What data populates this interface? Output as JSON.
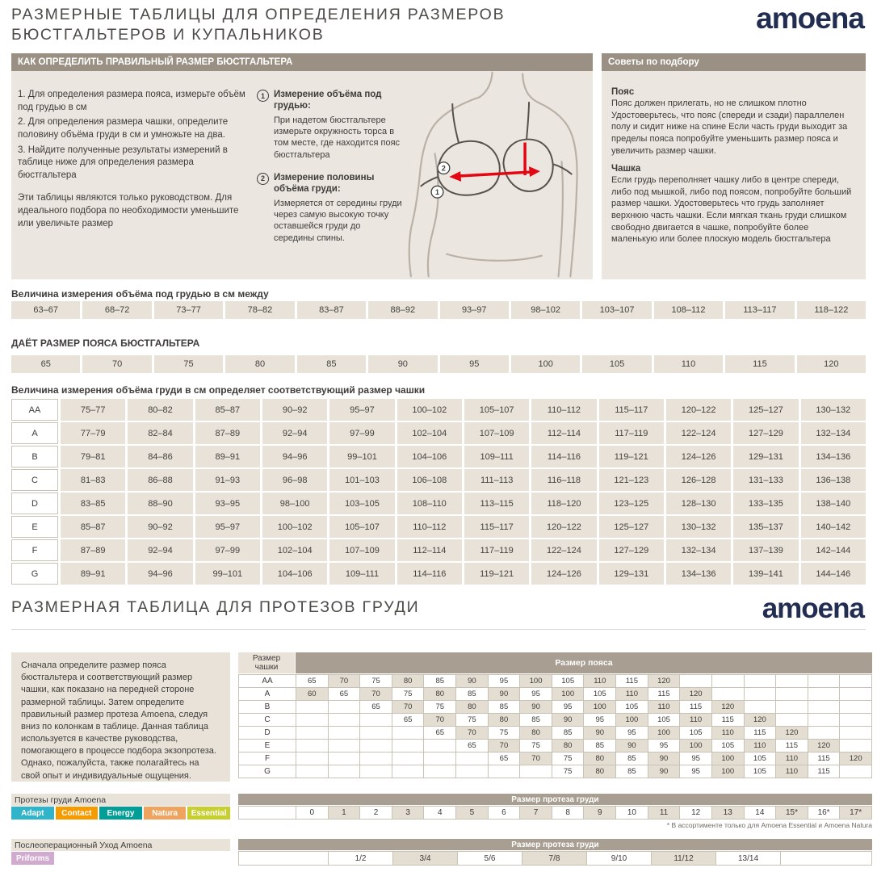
{
  "brand": {
    "logo": "amoena"
  },
  "colors": {
    "logo_navy": "#222d52",
    "section_bar": "#9a9184",
    "panel_beige": "#ebe6df",
    "cell_beige": "#e8e2d9",
    "cell_shaded": "#e4ddd2",
    "accent_red": "#e30613"
  },
  "header": {
    "title_line1": "РАЗМЕРНЫЕ ТАБЛИЦЫ ДЛЯ ОПРЕДЕЛЕНИЯ РАЗМЕРОВ",
    "title_line2": "БЮСТГАЛЬТЕРОВ И КУПАЛЬНИКОВ"
  },
  "how_to": {
    "bar_title": "КАК ОПРЕДЕЛИТЬ ПРАВИЛЬНЫЙ РАЗМЕР БЮСТГАЛЬТЕРА",
    "steps": [
      "1. Для определения размера пояса, измерьте объём под грудью в см",
      "2.  Для определения размера чашки, определите половину объёма груди в см и умножьте на два.",
      "3.  Найдите полученные результаты измерений в таблице ниже для определения размера бюстгальтера"
    ],
    "note": "Эти таблицы являются только руководством. Для идеального подбора по необходимости уменьшите или увеличьте размер",
    "measurements": [
      {
        "num": "1",
        "title": "Измерение объёма под грудью:",
        "text": "При надетом бюстгальтере измерьте окружность торса в том месте, где находится пояс бюстгальтера"
      },
      {
        "num": "2",
        "title": "Измерение половины объёма груди:",
        "text": "Измеряется от середины груди через самую высокую точку оставшейся груди до середины спины."
      }
    ]
  },
  "tips": {
    "bar_title": "Советы по подбору",
    "sections": [
      {
        "title": "Пояс",
        "text": "Пояс должен прилегать, но не слишком плотно Удостоверьтесь, что пояс (спереди и сзади) параллелен полу и сидит ниже на спине Если часть груди выходит за пределы пояса попробуйте уменьшить размер пояса и увеличить размер чашки."
      },
      {
        "title": "Чашка",
        "text": "Если грудь переполняет чашку либо в центре спереди, либо под мышкой, либо под поясом, попробуйте больший размер чашки. Удостоверьтесь что грудь заполняет верхнюю часть чашки. Если мягкая ткань груди слишком свободно двигается в чашке, попробуйте более маленькую или более плоскую модель бюстгальтера"
      }
    ]
  },
  "size_tables": {
    "underbust_label": "Величина измерения объёма под грудью в см между",
    "underbust_ranges": [
      "63–67",
      "68–72",
      "73–77",
      "78–82",
      "83–87",
      "88–92",
      "93–97",
      "98–102",
      "103–107",
      "108–112",
      "113–117",
      "118–122"
    ],
    "band_label": "ДАЁТ РАЗМЕР ПОЯСА БЮСТГАЛЬТЕРА",
    "band_sizes": [
      "65",
      "70",
      "75",
      "80",
      "85",
      "90",
      "95",
      "100",
      "105",
      "110",
      "115",
      "120"
    ],
    "cup_label": "Величина измерения объёма груди в см определяет соответствующий размер чашки",
    "cup_rows": [
      {
        "cup": "AA",
        "values": [
          "75–77",
          "80–82",
          "85–87",
          "90–92",
          "95–97",
          "100–102",
          "105–107",
          "110–112",
          "115–117",
          "120–122",
          "125–127",
          "130–132"
        ]
      },
      {
        "cup": "A",
        "values": [
          "77–79",
          "82–84",
          "87–89",
          "92–94",
          "97–99",
          "102–104",
          "107–109",
          "112–114",
          "117–119",
          "122–124",
          "127–129",
          "132–134"
        ]
      },
      {
        "cup": "B",
        "values": [
          "79–81",
          "84–86",
          "89–91",
          "94–96",
          "99–101",
          "104–106",
          "109–111",
          "114–116",
          "119–121",
          "124–126",
          "129–131",
          "134–136"
        ]
      },
      {
        "cup": "C",
        "values": [
          "81–83",
          "86–88",
          "91–93",
          "96–98",
          "101–103",
          "106–108",
          "111–113",
          "116–118",
          "121–123",
          "126–128",
          "131–133",
          "136–138"
        ]
      },
      {
        "cup": "D",
        "values": [
          "83–85",
          "88–90",
          "93–95",
          "98–100",
          "103–105",
          "108–110",
          "113–115",
          "118–120",
          "123–125",
          "128–130",
          "133–135",
          "138–140"
        ]
      },
      {
        "cup": "E",
        "values": [
          "85–87",
          "90–92",
          "95–97",
          "100–102",
          "105–107",
          "110–112",
          "115–117",
          "120–122",
          "125–127",
          "130–132",
          "135–137",
          "140–142"
        ]
      },
      {
        "cup": "F",
        "values": [
          "87–89",
          "92–94",
          "97–99",
          "102–104",
          "107–109",
          "112–114",
          "117–119",
          "122–124",
          "127–129",
          "132–134",
          "137–139",
          "142–144"
        ]
      },
      {
        "cup": "G",
        "values": [
          "89–91",
          "94–96",
          "99–101",
          "104–106",
          "109–111",
          "114–116",
          "119–121",
          "124–126",
          "129–131",
          "134–136",
          "139–141",
          "144–146"
        ]
      }
    ]
  },
  "prosthesis_section": {
    "title": "РАЗМЕРНАЯ ТАБЛИЦА ДЛЯ ПРОТЕЗОВ ГРУДИ",
    "intro": "Сначала определите размер пояса бюстгальтера и соответствующий размер чашки, как показано на передней стороне размерной таблицы. Затем определите правильный размер протеза Amoena, следуя вниз по колонкам в таблице. Данная таблица используется в качестве руководства, помогающего в процессе подбора экзопротеза. Однако, пожалуйста, также полагайтесь на свой опыт и индивидуальные ощущения.",
    "cup_header_line1": "Размер",
    "cup_header_line2": "чашки",
    "band_header": "Размер пояса",
    "columns": 18,
    "rows": [
      {
        "cup": "AA",
        "start": 0,
        "values": [
          65,
          70,
          75,
          80,
          85,
          90,
          95,
          100,
          105,
          110,
          115,
          120
        ]
      },
      {
        "cup": "A",
        "start": 0,
        "values": [
          60,
          65,
          70,
          75,
          80,
          85,
          90,
          95,
          100,
          105,
          110,
          115,
          120
        ]
      },
      {
        "cup": "B",
        "start": 2,
        "values": [
          65,
          70,
          75,
          80,
          85,
          90,
          95,
          100,
          105,
          110,
          115,
          120
        ]
      },
      {
        "cup": "C",
        "start": 3,
        "values": [
          65,
          70,
          75,
          80,
          85,
          90,
          95,
          100,
          105,
          110,
          115,
          120
        ]
      },
      {
        "cup": "D",
        "start": 4,
        "values": [
          65,
          70,
          75,
          80,
          85,
          90,
          95,
          100,
          105,
          110,
          115,
          120
        ]
      },
      {
        "cup": "E",
        "start": 5,
        "values": [
          65,
          70,
          75,
          80,
          85,
          90,
          95,
          100,
          105,
          110,
          115,
          120
        ]
      },
      {
        "cup": "F",
        "start": 6,
        "values": [
          65,
          70,
          75,
          80,
          85,
          90,
          95,
          100,
          105,
          110,
          115,
          120
        ]
      },
      {
        "cup": "G",
        "start": 8,
        "values": [
          75,
          80,
          85,
          90,
          95,
          100,
          105,
          110,
          115
        ]
      }
    ],
    "size_row_header": "Размер протеза груди",
    "sizes": [
      "0",
      "1",
      "2",
      "3",
      "4",
      "5",
      "6",
      "7",
      "8",
      "9",
      "10",
      "11",
      "12",
      "13",
      "14",
      "15*",
      "16*",
      "17*"
    ],
    "footnote": "* В ассортименте только для  Amoena Essential и Amoena Natura"
  },
  "product_lines": {
    "label": "Протезы груди Amoena",
    "chips": [
      {
        "label": "Adapt",
        "bg": "#2fb4c9",
        "fg": "#ffffff"
      },
      {
        "label": "Contact",
        "bg": "#f59b00",
        "fg": "#ffffff"
      },
      {
        "label": "Energy",
        "bg": "#009e96",
        "fg": "#ffffff"
      },
      {
        "label": "Natura",
        "bg": "#eea45f",
        "fg": "#ffffff"
      },
      {
        "label": "Essential",
        "bg": "#c6cf2f",
        "fg": "#ffffff"
      }
    ]
  },
  "care": {
    "label": "Послеоперационный Уход Amoena",
    "chip": {
      "label": "Priforms",
      "bg": "#d0aacf",
      "fg": "#ffffff"
    },
    "size_row_header": "Размер протеза груди",
    "sizes": [
      "1/2",
      "3/4",
      "5/6",
      "7/8",
      "9/10",
      "11/12",
      "13/14"
    ]
  }
}
